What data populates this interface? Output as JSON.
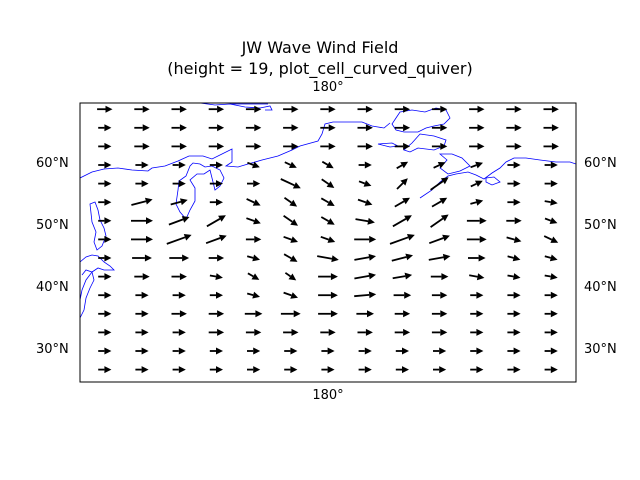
{
  "figure": {
    "title_line1": "JW Wave Wind Field",
    "title_line2": "(height = 19, plot_cell_curved_quiver)"
  },
  "map": {
    "projection": "PlateCarree, centered 180°",
    "lon_label_top": "180°",
    "lon_label_bottom": "180°",
    "lat_labels": [
      "30°N",
      "40°N",
      "50°N",
      "60°N"
    ],
    "lat_values": [
      30,
      40,
      50,
      60
    ],
    "lat_range": [
      25,
      70
    ],
    "lon_range": [
      140,
      220
    ],
    "coastline_color": "#0000ff",
    "arrow_color": "#000000",
    "frame_color": "#000000"
  },
  "chart_data": {
    "type": "quiver",
    "title": "JW Wave Wind Field (height = 19, plot_cell_curved_quiver)",
    "xlabel": "",
    "ylabel": "",
    "xlim": [
      140,
      220
    ],
    "ylim": [
      25,
      70
    ],
    "grid": false,
    "series": [
      {
        "lons": [
          144,
          150,
          156,
          162,
          168,
          174,
          180,
          186,
          192,
          198,
          204,
          210,
          216
        ],
        "rows": [
          {
            "lat": 69,
            "angles": [
              0,
              0,
              0,
              0,
              0,
              0,
              0,
              0,
              0,
              0,
              0,
              0,
              0
            ],
            "lengths": [
              0.7,
              0.7,
              0.7,
              0.7,
              0.7,
              0.7,
              0.7,
              0.7,
              0.7,
              0.7,
              0.7,
              0.7,
              0.7
            ]
          },
          {
            "lat": 66,
            "angles": [
              0,
              0,
              0,
              0,
              0,
              0,
              0,
              0,
              0,
              0,
              0,
              0,
              0
            ],
            "lengths": [
              0.6,
              0.7,
              0.7,
              0.7,
              0.7,
              0.7,
              0.7,
              0.7,
              0.7,
              0.7,
              0.7,
              0.7,
              0.7
            ]
          },
          {
            "lat": 63,
            "angles": [
              0,
              0,
              0,
              0,
              0,
              0,
              0,
              0,
              0,
              0,
              0,
              0,
              0
            ],
            "lengths": [
              0.6,
              0.7,
              0.7,
              0.7,
              0.7,
              0.7,
              0.7,
              0.7,
              0.7,
              0.7,
              0.7,
              0.7,
              0.7
            ]
          },
          {
            "lat": 60,
            "angles": [
              0,
              0,
              0,
              0,
              20,
              25,
              30,
              0,
              -30,
              -25,
              -20,
              0,
              0
            ],
            "lengths": [
              0.6,
              0.6,
              0.6,
              0.6,
              0.6,
              0.6,
              0.6,
              0.6,
              0.6,
              0.6,
              0.6,
              0.6,
              0.6
            ]
          },
          {
            "lat": 57,
            "angles": [
              0,
              0,
              0,
              0,
              0,
              25,
              35,
              20,
              -45,
              -35,
              -25,
              0,
              0
            ],
            "lengths": [
              0.6,
              0.6,
              0.6,
              0.6,
              0.6,
              1.0,
              0.7,
              0.6,
              0.7,
              1.0,
              0.6,
              0.6,
              0.6
            ]
          },
          {
            "lat": 54,
            "angles": [
              0,
              -15,
              -15,
              0,
              25,
              35,
              30,
              20,
              -30,
              -30,
              -15,
              0,
              10
            ],
            "lengths": [
              0.6,
              1.0,
              0.8,
              0.6,
              0.7,
              0.7,
              0.7,
              0.7,
              0.8,
              0.8,
              0.6,
              0.6,
              0.6
            ]
          },
          {
            "lat": 51,
            "angles": [
              0,
              0,
              -20,
              -30,
              20,
              35,
              30,
              10,
              -30,
              -35,
              0,
              0,
              20
            ],
            "lengths": [
              0.6,
              1.0,
              1.0,
              1.0,
              0.7,
              0.8,
              0.7,
              0.9,
              1.0,
              1.0,
              0.9,
              0.7,
              0.6
            ]
          },
          {
            "lat": 48,
            "angles": [
              0,
              0,
              -20,
              -20,
              0,
              20,
              20,
              0,
              -20,
              -20,
              0,
              15,
              25
            ],
            "lengths": [
              0.6,
              1.0,
              1.2,
              1.0,
              0.7,
              0.7,
              0.7,
              1.0,
              1.2,
              1.0,
              0.9,
              0.7,
              0.7
            ]
          },
          {
            "lat": 45,
            "angles": [
              0,
              0,
              0,
              0,
              15,
              30,
              10,
              -10,
              -15,
              -10,
              0,
              15,
              15
            ],
            "lengths": [
              0.6,
              0.9,
              0.9,
              0.7,
              0.6,
              0.7,
              1.0,
              1.0,
              1.0,
              1.0,
              0.8,
              0.6,
              0.6
            ]
          },
          {
            "lat": 42,
            "angles": [
              0,
              0,
              0,
              10,
              30,
              35,
              0,
              -10,
              -10,
              0,
              10,
              10,
              10
            ],
            "lengths": [
              0.6,
              0.7,
              0.7,
              0.6,
              0.6,
              0.6,
              0.9,
              1.0,
              0.9,
              0.8,
              0.7,
              0.6,
              0.6
            ]
          },
          {
            "lat": 39,
            "angles": [
              0,
              0,
              0,
              0,
              15,
              20,
              0,
              -5,
              0,
              0,
              0,
              0,
              0
            ],
            "lengths": [
              0.6,
              0.6,
              0.6,
              0.6,
              0.6,
              0.7,
              0.9,
              1.0,
              0.8,
              0.7,
              0.6,
              0.6,
              0.6
            ]
          },
          {
            "lat": 36,
            "angles": [
              0,
              0,
              0,
              0,
              0,
              0,
              0,
              0,
              0,
              0,
              0,
              0,
              0
            ],
            "lengths": [
              0.6,
              0.6,
              0.7,
              0.7,
              0.8,
              0.9,
              0.9,
              0.8,
              0.7,
              0.7,
              0.6,
              0.6,
              0.6
            ]
          },
          {
            "lat": 33,
            "angles": [
              0,
              0,
              0,
              0,
              0,
              0,
              0,
              0,
              0,
              0,
              0,
              0,
              0
            ],
            "lengths": [
              0.6,
              0.6,
              0.6,
              0.7,
              0.7,
              0.7,
              0.7,
              0.7,
              0.7,
              0.7,
              0.6,
              0.6,
              0.6
            ]
          },
          {
            "lat": 30,
            "angles": [
              0,
              0,
              0,
              0,
              0,
              0,
              0,
              0,
              0,
              0,
              0,
              0,
              0
            ],
            "lengths": [
              0.6,
              0.6,
              0.6,
              0.6,
              0.6,
              0.6,
              0.6,
              0.6,
              0.6,
              0.6,
              0.6,
              0.6,
              0.6
            ]
          },
          {
            "lat": 27,
            "angles": [
              0,
              0,
              0,
              0,
              0,
              0,
              0,
              0,
              0,
              0,
              0,
              0,
              0
            ],
            "lengths": [
              0.6,
              0.6,
              0.6,
              0.6,
              0.6,
              0.6,
              0.6,
              0.6,
              0.6,
              0.6,
              0.6,
              0.6,
              0.6
            ]
          }
        ]
      }
    ]
  }
}
